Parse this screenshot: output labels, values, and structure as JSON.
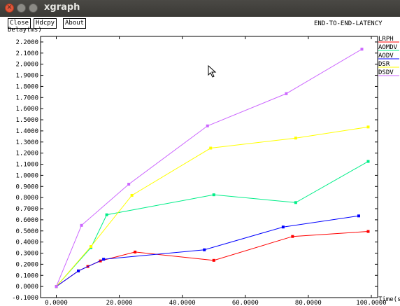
{
  "window": {
    "title": "xgraph",
    "controls": {
      "close_icon": "close-icon",
      "minimize_icon": "minimize-icon",
      "maximize_icon": "maximize-icon"
    }
  },
  "toolbar": {
    "close_label": "Close",
    "hdcpy_label": "Hdcpy",
    "about_label": "About"
  },
  "chart_data": {
    "type": "line",
    "title": "END-TO-END-LATENCY",
    "xlabel": "Time(s",
    "ylabel": "Delay(ms)",
    "xlim": [
      -5,
      102
    ],
    "ylim": [
      -0.1,
      2.25
    ],
    "x_ticks": [
      0,
      20,
      40,
      60,
      80,
      100
    ],
    "x_tick_labels": [
      "0.0000",
      "20.0000",
      "40.0000",
      "60.0000",
      "80.0000",
      "100.0000"
    ],
    "y_ticks": [
      -0.1,
      0,
      0.1,
      0.2,
      0.3,
      0.4,
      0.5,
      0.6,
      0.7,
      0.8,
      0.9,
      1.0,
      1.1,
      1.2,
      1.3,
      1.4,
      1.5,
      1.6,
      1.7,
      1.8,
      1.9,
      2.0,
      2.1,
      2.2
    ],
    "y_tick_labels": [
      "-0.1000",
      "0.0000",
      "0.1000",
      "0.2000",
      "0.3000",
      "0.4000",
      "0.5000",
      "0.6000",
      "0.7000",
      "0.8000",
      "0.9000",
      "1.0000",
      "1.1000",
      "1.2000",
      "1.3000",
      "1.4000",
      "1.5000",
      "1.6000",
      "1.7000",
      "1.8000",
      "1.9000",
      "2.0000",
      "2.1000",
      "2.2000"
    ],
    "grid": false,
    "legend_position": "right",
    "series": [
      {
        "name": "LRPH",
        "color": "#ff0000",
        "x": [
          0,
          7,
          10,
          14,
          25,
          50,
          75,
          99
        ],
        "y": [
          0,
          0.14,
          0.18,
          0.23,
          0.31,
          0.235,
          0.45,
          0.495
        ]
      },
      {
        "name": "AOMDV",
        "color": "#00ee88",
        "x": [
          0,
          11,
          16,
          50,
          76,
          99
        ],
        "y": [
          0,
          0.35,
          0.645,
          0.825,
          0.755,
          1.125
        ]
      },
      {
        "name": "AODV",
        "color": "#0000ff",
        "x": [
          0,
          7,
          15,
          47,
          72,
          96
        ],
        "y": [
          0,
          0.14,
          0.245,
          0.33,
          0.535,
          0.635
        ]
      },
      {
        "name": "DSR",
        "color": "#ffff00",
        "x": [
          0,
          11,
          24,
          49,
          76,
          99
        ],
        "y": [
          0,
          0.36,
          0.82,
          1.245,
          1.335,
          1.435
        ]
      },
      {
        "name": "DSDV",
        "color": "#cc66ff",
        "x": [
          0,
          8,
          23,
          48,
          73,
          97
        ],
        "y": [
          0,
          0.55,
          0.92,
          1.445,
          1.735,
          2.135
        ]
      }
    ]
  }
}
